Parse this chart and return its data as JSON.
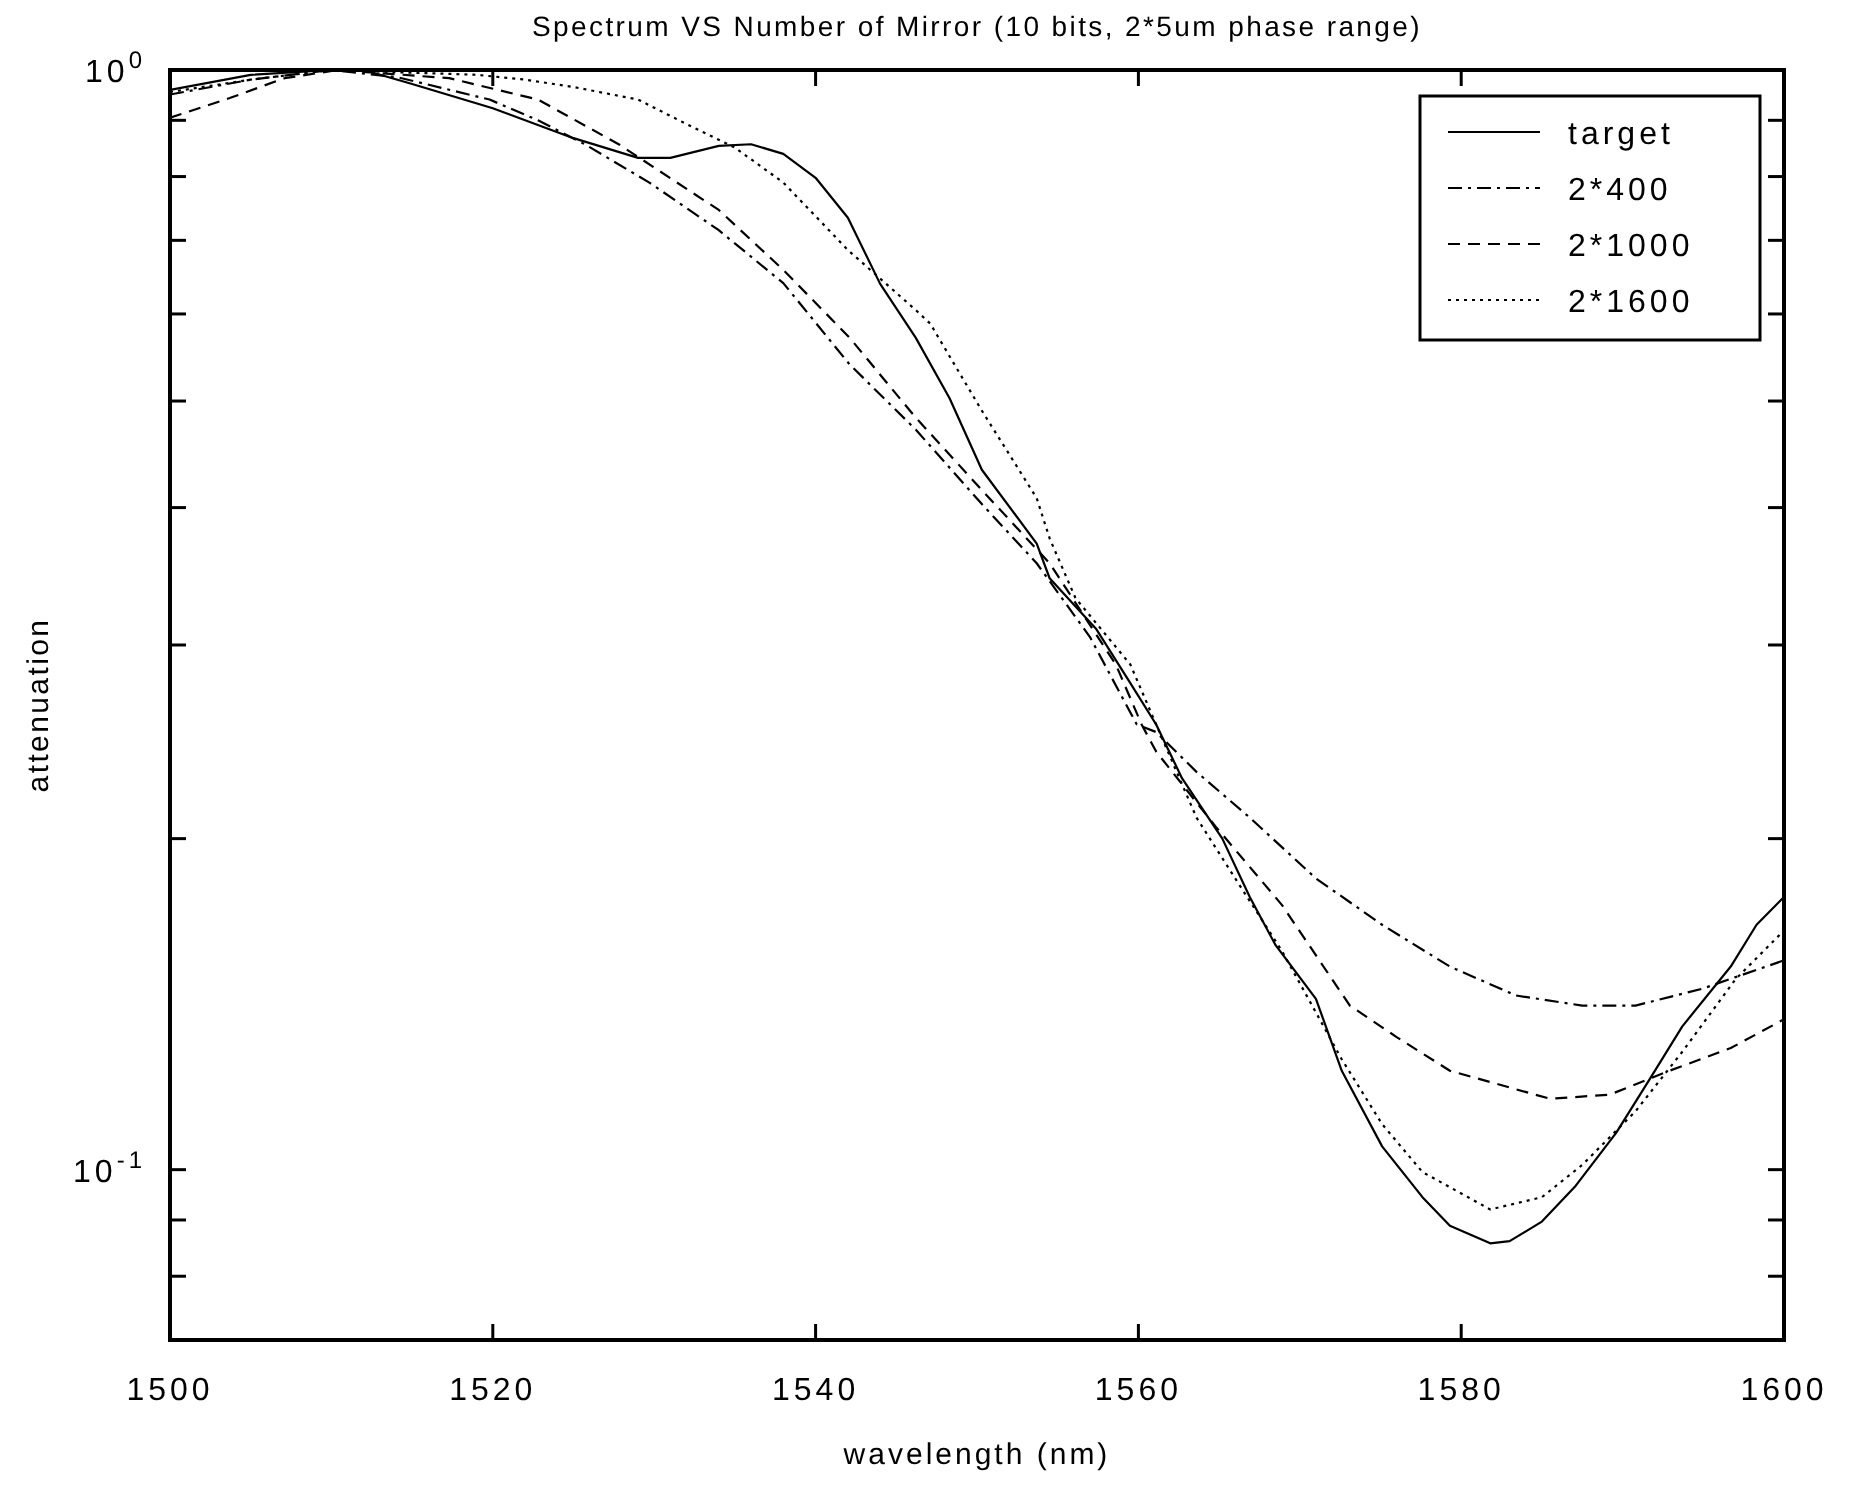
{
  "chart_data": {
    "type": "line",
    "title": "Spectrum VS Number of Mirror (10 bits, 2*5um phase range)",
    "xlabel": "wavelength (nm)",
    "ylabel": "attenuation",
    "log": "y",
    "xlim": [
      1500,
      1600
    ],
    "ylim": [
      0.07,
      1
    ],
    "xticks": [
      1500,
      1520,
      1540,
      1560,
      1580,
      1600
    ],
    "yticks": [
      {
        "value": 1,
        "label": "10$^{0}$"
      },
      {
        "value": 0.9,
        "label": null
      },
      {
        "value": 0.8,
        "label": null
      },
      {
        "value": 0.7,
        "label": null
      },
      {
        "value": 0.6,
        "label": null
      },
      {
        "value": 0.5,
        "label": null
      },
      {
        "value": 0.4,
        "label": null
      },
      {
        "value": 0.3,
        "label": null
      },
      {
        "value": 0.2,
        "label": null
      },
      {
        "value": 0.1,
        "label": "10$^{-1}$"
      },
      {
        "value": 0.09,
        "label": null
      },
      {
        "value": 0.08,
        "label": null
      }
    ],
    "grid": false,
    "legend": "top right",
    "series": [
      {
        "name": "target",
        "color": "#000000",
        "line_style": "solid",
        "x": [
          1500,
          1505,
          1510,
          1512,
          1515,
          1520,
          1525,
          1529,
          1531,
          1534,
          1536,
          1538,
          1540,
          1542,
          1544,
          1546.2,
          1548.3,
          1550.3,
          1553.7,
          1554.5,
          1557.4,
          1559.5,
          1561.1,
          1562.7,
          1565.2,
          1566.9,
          1568.5,
          1571,
          1572.6,
          1575.1,
          1577.6,
          1579.3,
          1581.8,
          1583,
          1585,
          1587.1,
          1589.6,
          1591.7,
          1593.7,
          1596.7,
          1598.3,
          1600
        ],
        "values": [
          0.959,
          0.99,
          1.0,
          1.0,
          0.971,
          0.923,
          0.867,
          0.832,
          0.832,
          0.853,
          0.856,
          0.839,
          0.798,
          0.734,
          0.639,
          0.571,
          0.503,
          0.433,
          0.371,
          0.345,
          0.31,
          0.277,
          0.254,
          0.227,
          0.2,
          0.177,
          0.16,
          0.143,
          0.123,
          0.105,
          0.0944,
          0.0889,
          0.0857,
          0.0861,
          0.0897,
          0.0967,
          0.108,
          0.121,
          0.135,
          0.153,
          0.167,
          0.177
        ]
      },
      {
        "name": "2*400",
        "color": "#000000",
        "line_style": "dashdot",
        "x": [
          1500,
          1505,
          1510,
          1514.1,
          1519.8,
          1522.8,
          1525.7,
          1529.7,
          1534,
          1538,
          1542.1,
          1546.2,
          1550.3,
          1553.7,
          1557,
          1559.9,
          1561.1,
          1563.6,
          1566.9,
          1571,
          1575.1,
          1579.3,
          1583.4,
          1587.5,
          1590.8,
          1594.9,
          1600
        ],
        "values": [
          0.95,
          0.98,
          1.0,
          0.985,
          0.94,
          0.9,
          0.856,
          0.79,
          0.715,
          0.64,
          0.54,
          0.471,
          0.403,
          0.356,
          0.305,
          0.254,
          0.25,
          0.23,
          0.209,
          0.184,
          0.167,
          0.153,
          0.144,
          0.141,
          0.141,
          0.146,
          0.155
        ]
      },
      {
        "name": "2*1000",
        "color": "#000000",
        "line_style": "dashed",
        "x": [
          1500,
          1503.7,
          1507.1,
          1510.4,
          1517.3,
          1522.8,
          1527.8,
          1534,
          1538,
          1542.1,
          1546.2,
          1550.3,
          1554.5,
          1558.6,
          1560.2,
          1561.1,
          1564.8,
          1568.9,
          1573.1,
          1576,
          1579.3,
          1585.5,
          1589.2,
          1592.9,
          1596.7,
          1600
        ],
        "values": [
          0.905,
          0.943,
          0.983,
          1.0,
          0.983,
          0.94,
          0.856,
          0.746,
          0.658,
          0.571,
          0.483,
          0.415,
          0.356,
          0.288,
          0.254,
          0.24,
          0.205,
          0.174,
          0.141,
          0.132,
          0.123,
          0.116,
          0.117,
          0.123,
          0.129,
          0.137
        ]
      },
      {
        "name": "2*1600",
        "color": "#000000",
        "line_style": "dotted",
        "x": [
          1500,
          1505,
          1510,
          1519,
          1522,
          1525,
          1529,
          1532,
          1535,
          1538,
          1542,
          1546.2,
          1547.1,
          1550.3,
          1553.7,
          1554.5,
          1556.1,
          1559.5,
          1561.1,
          1563.6,
          1566,
          1568.9,
          1572.6,
          1575.1,
          1577.6,
          1581.8,
          1585,
          1587.5,
          1590.8,
          1593.7,
          1597,
          1600
        ],
        "values": [
          0.955,
          0.98,
          1.0,
          0.99,
          0.98,
          0.965,
          0.94,
          0.893,
          0.85,
          0.79,
          0.686,
          0.605,
          0.588,
          0.49,
          0.408,
          0.375,
          0.331,
          0.288,
          0.254,
          0.209,
          0.184,
          0.158,
          0.126,
          0.11,
          0.0995,
          0.092,
          0.0944,
          0.101,
          0.113,
          0.128,
          0.149,
          0.165
        ]
      }
    ]
  }
}
